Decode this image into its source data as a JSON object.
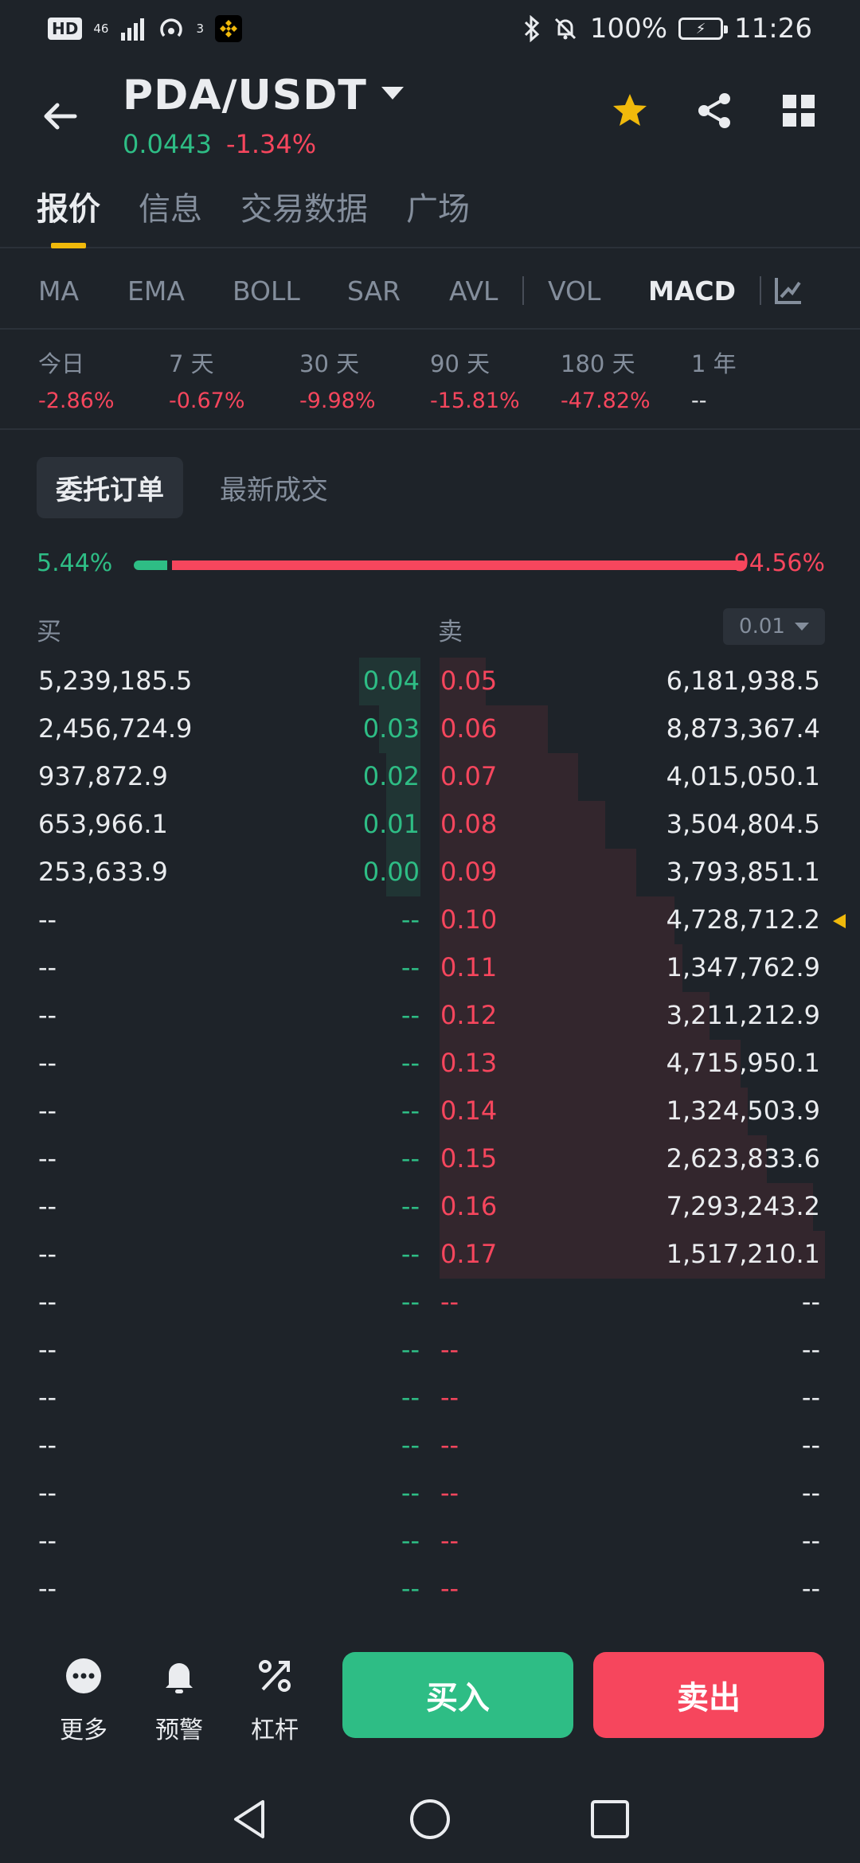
{
  "status_bar": {
    "network": "46",
    "wifi_badge": "3",
    "battery": "100%",
    "time": "11:26",
    "hd": "HD"
  },
  "header": {
    "pair": "PDA/USDT",
    "price": "0.0443",
    "change": "-1.34%"
  },
  "tabs": [
    {
      "label": "报价",
      "active": true
    },
    {
      "label": "信息",
      "active": false
    },
    {
      "label": "交易数据",
      "active": false
    },
    {
      "label": "广场",
      "active": false
    }
  ],
  "indicators": [
    {
      "label": "MA",
      "active": false
    },
    {
      "label": "EMA",
      "active": false
    },
    {
      "label": "BOLL",
      "active": false
    },
    {
      "label": "SAR",
      "active": false
    },
    {
      "label": "AVL",
      "active": false
    },
    {
      "label": "VOL",
      "active": false
    },
    {
      "label": "MACD",
      "active": true
    }
  ],
  "periods": [
    {
      "label": "今日",
      "value": "-2.86%"
    },
    {
      "label": "7 天",
      "value": "-0.67%"
    },
    {
      "label": "30 天",
      "value": "-9.98%"
    },
    {
      "label": "90 天",
      "value": "-15.81%"
    },
    {
      "label": "180 天",
      "value": "-47.82%"
    },
    {
      "label": "1 年",
      "value": "--"
    }
  ],
  "orderbook_tabs": [
    {
      "label": "委托订单",
      "active": true
    },
    {
      "label": "最新成交",
      "active": false
    }
  ],
  "ratio": {
    "buy": "5.44%",
    "sell": "94.56%",
    "buy_fraction": 0.0544
  },
  "book_header": {
    "buy": "买",
    "sell": "卖",
    "precision": "0.01"
  },
  "orderbook": [
    {
      "bid_qty": "5,239,185.5",
      "bid_price": "0.04",
      "ask_price": "0.05",
      "ask_qty": "6,181,938.5",
      "bid_depth": 0.18,
      "ask_depth": 0.12
    },
    {
      "bid_qty": "2,456,724.9",
      "bid_price": "0.03",
      "ask_price": "0.06",
      "ask_qty": "8,873,367.4",
      "bid_depth": 0.12,
      "ask_depth": 0.28
    },
    {
      "bid_qty": "937,872.9",
      "bid_price": "0.02",
      "ask_price": "0.07",
      "ask_qty": "4,015,050.1",
      "bid_depth": 0.1,
      "ask_depth": 0.36
    },
    {
      "bid_qty": "653,966.1",
      "bid_price": "0.01",
      "ask_price": "0.08",
      "ask_qty": "3,504,804.5",
      "bid_depth": 0.1,
      "ask_depth": 0.43
    },
    {
      "bid_qty": "253,633.9",
      "bid_price": "0.00",
      "ask_price": "0.09",
      "ask_qty": "3,793,851.1",
      "bid_depth": 0.1,
      "ask_depth": 0.51
    },
    {
      "bid_qty": "--",
      "bid_price": "--",
      "ask_price": "0.10",
      "ask_qty": "4,728,712.2",
      "bid_depth": 0,
      "ask_depth": 0.61,
      "marker": true
    },
    {
      "bid_qty": "--",
      "bid_price": "--",
      "ask_price": "0.11",
      "ask_qty": "1,347,762.9",
      "bid_depth": 0,
      "ask_depth": 0.63
    },
    {
      "bid_qty": "--",
      "bid_price": "--",
      "ask_price": "0.12",
      "ask_qty": "3,211,212.9",
      "bid_depth": 0,
      "ask_depth": 0.7
    },
    {
      "bid_qty": "--",
      "bid_price": "--",
      "ask_price": "0.13",
      "ask_qty": "4,715,950.1",
      "bid_depth": 0,
      "ask_depth": 0.78
    },
    {
      "bid_qty": "--",
      "bid_price": "--",
      "ask_price": "0.14",
      "ask_qty": "1,324,503.9",
      "bid_depth": 0,
      "ask_depth": 0.8
    },
    {
      "bid_qty": "--",
      "bid_price": "--",
      "ask_price": "0.15",
      "ask_qty": "2,623,833.6",
      "bid_depth": 0,
      "ask_depth": 0.85
    },
    {
      "bid_qty": "--",
      "bid_price": "--",
      "ask_price": "0.16",
      "ask_qty": "7,293,243.2",
      "bid_depth": 0,
      "ask_depth": 0.97
    },
    {
      "bid_qty": "--",
      "bid_price": "--",
      "ask_price": "0.17",
      "ask_qty": "1,517,210.1",
      "bid_depth": 0,
      "ask_depth": 1.0
    },
    {
      "bid_qty": "--",
      "bid_price": "--",
      "ask_price": "--",
      "ask_qty": "--",
      "bid_depth": 0,
      "ask_depth": 0
    },
    {
      "bid_qty": "--",
      "bid_price": "--",
      "ask_price": "--",
      "ask_qty": "--",
      "bid_depth": 0,
      "ask_depth": 0
    },
    {
      "bid_qty": "--",
      "bid_price": "--",
      "ask_price": "--",
      "ask_qty": "--",
      "bid_depth": 0,
      "ask_depth": 0
    },
    {
      "bid_qty": "--",
      "bid_price": "--",
      "ask_price": "--",
      "ask_qty": "--",
      "bid_depth": 0,
      "ask_depth": 0
    },
    {
      "bid_qty": "--",
      "bid_price": "--",
      "ask_price": "--",
      "ask_qty": "--",
      "bid_depth": 0,
      "ask_depth": 0
    },
    {
      "bid_qty": "--",
      "bid_price": "--",
      "ask_price": "--",
      "ask_qty": "--",
      "bid_depth": 0,
      "ask_depth": 0
    },
    {
      "bid_qty": "--",
      "bid_price": "--",
      "ask_price": "--",
      "ask_qty": "--",
      "bid_depth": 0,
      "ask_depth": 0
    }
  ],
  "bottom_bar": {
    "more": "更多",
    "alert": "预警",
    "leverage": "杠杆",
    "buy": "买入",
    "sell": "卖出"
  },
  "colors": {
    "green": "#2ebd85",
    "red": "#f6465d",
    "accent": "#f0b90b",
    "background": "#1e2329"
  },
  "icons": [
    "back-arrow-icon",
    "dropdown-caret-icon",
    "star-icon",
    "share-icon",
    "grid-icon",
    "chart-settings-icon",
    "more-icon",
    "bell-icon",
    "leverage-icon",
    "nav-back-icon",
    "nav-home-icon",
    "nav-recents-icon"
  ]
}
